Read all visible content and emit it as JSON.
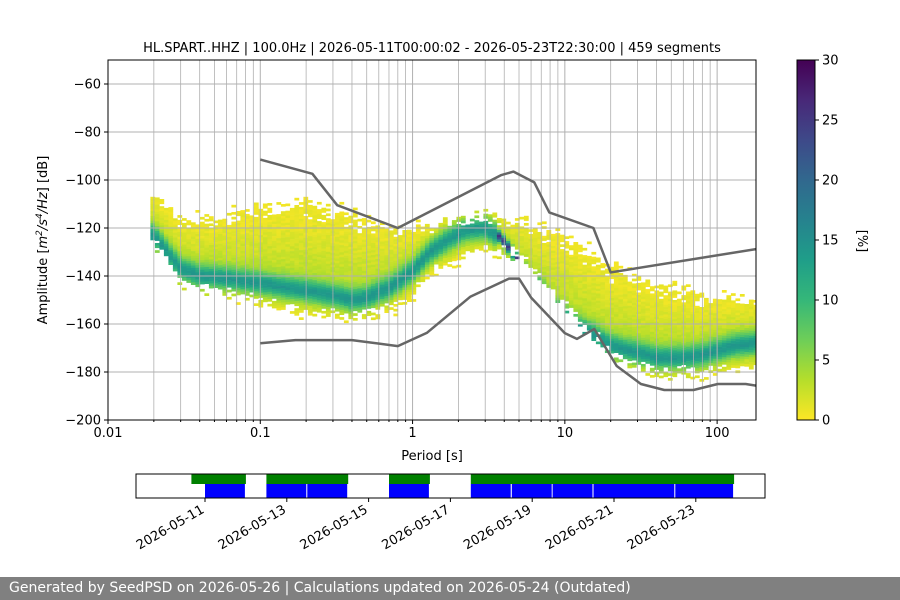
{
  "chart_data": {
    "type": "heatmap",
    "title": "HL.SPART..HHZ | 100.0Hz | 2026-05-11T00:00:02 - 2026-05-23T22:30:00 | 459 segments",
    "xlabel": "Period [s]",
    "ylabel": "Amplitude [$m^2/s^4/Hz$] [dB]",
    "xscale": "log",
    "xlim": [
      0.01,
      180
    ],
    "ylim": [
      -200,
      -50
    ],
    "x_ticks": [
      0.01,
      0.1,
      1,
      10,
      100
    ],
    "x_tick_labels": [
      "0.01",
      "0.1",
      "1",
      "10",
      "100"
    ],
    "y_ticks": [
      -60,
      -80,
      -100,
      -120,
      -140,
      -160,
      -180,
      -200
    ],
    "y_tick_labels": [
      "−60",
      "−80",
      "−100",
      "−120",
      "−140",
      "−160",
      "−180",
      "−200"
    ],
    "grid": true,
    "colorbar": {
      "label": "[%]",
      "range": [
        0,
        30
      ],
      "ticks": [
        0,
        5,
        10,
        15,
        20,
        25,
        30
      ],
      "tick_labels": [
        "0",
        "5",
        "10",
        "15",
        "20",
        "25",
        "30"
      ],
      "colormap": [
        "#fde725",
        "#b5de2b",
        "#6ece58",
        "#35b779",
        "#1f9e89",
        "#26828e",
        "#31688e",
        "#3e4989",
        "#482878",
        "#440154"
      ]
    },
    "mode_curve": {
      "period": [
        0.02,
        0.025,
        0.03,
        0.04,
        0.06,
        0.1,
        0.15,
        0.2,
        0.3,
        0.4,
        0.5,
        0.7,
        1.0,
        1.3,
        1.7,
        2.2,
        3.0,
        3.8,
        4.5,
        5.5,
        7,
        9,
        12,
        16,
        20,
        30,
        40,
        60,
        80,
        100,
        130,
        180
      ],
      "db": [
        -123,
        -131,
        -137,
        -140,
        -141,
        -143,
        -145,
        -146,
        -148,
        -150,
        -149,
        -145,
        -138,
        -130,
        -125,
        -121,
        -120,
        -124,
        -130,
        -137,
        -146,
        -155,
        -161,
        -165,
        -169,
        -172,
        -174,
        -174,
        -173,
        -171,
        -169,
        -168
      ]
    },
    "spread_upper": {
      "period": [
        0.02,
        0.03,
        0.05,
        0.1,
        0.2,
        0.4,
        0.8,
        1.5,
        3,
        5,
        8,
        12,
        20,
        40,
        80,
        180
      ],
      "db": [
        -103,
        -113,
        -112,
        -108,
        -106,
        -110,
        -117,
        -116,
        -112,
        -114,
        -118,
        -122,
        -132,
        -140,
        -145,
        -147
      ]
    },
    "spread_lower": {
      "period": [
        0.02,
        0.03,
        0.05,
        0.1,
        0.2,
        0.4,
        0.8,
        1.5,
        3,
        5,
        8,
        12,
        20,
        40,
        80,
        180
      ],
      "db": [
        -128,
        -145,
        -148,
        -154,
        -158,
        -160,
        -156,
        -140,
        -131,
        -134,
        -148,
        -160,
        -175,
        -183,
        -183,
        -180
      ]
    },
    "nlnm_line": {
      "period": [
        0.1,
        0.17,
        0.4,
        0.8,
        1.24,
        2.4,
        4.3,
        5.0,
        6.0,
        10.0,
        12.0,
        15.6,
        21.9,
        31.6,
        45.0,
        70.0,
        101.0,
        154.0,
        180.0
      ],
      "db": [
        -168.0,
        -166.7,
        -166.7,
        -169.2,
        -163.7,
        -148.6,
        -141.1,
        -141.1,
        -149.0,
        -163.8,
        -166.2,
        -162.1,
        -177.5,
        -185.0,
        -187.5,
        -187.5,
        -185.0,
        -185.0,
        -185.7
      ]
    },
    "nhnm_line": {
      "period": [
        0.1,
        0.22,
        0.32,
        0.8,
        3.8,
        4.6,
        6.3,
        7.9,
        15.4,
        20.0,
        180.0
      ],
      "db": [
        -91.5,
        -97.4,
        -110.5,
        -120.0,
        -98.0,
        -96.5,
        -101.0,
        -113.5,
        -120.0,
        -138.5,
        -128.8
      ]
    },
    "availability": {
      "date_ticks": [
        "2026-05-11",
        "2026-05-13",
        "2026-05-15",
        "2026-05-17",
        "2026-05-19",
        "2026-05-21",
        "2026-05-23"
      ],
      "green_bars": [
        [
          "2026-05-10T16:00",
          "2026-05-12T00:00"
        ],
        [
          "2026-05-12T12:00",
          "2026-05-14T12:00"
        ],
        [
          "2026-05-15T12:00",
          "2026-05-16T12:00"
        ],
        [
          "2026-05-17T12:00",
          "2026-05-23T22:30"
        ]
      ],
      "blue_bars": [
        [
          "2026-05-11T00:00",
          "2026-05-12T00:00"
        ],
        [
          "2026-05-12T12:00",
          "2026-05-13T12:00"
        ],
        [
          "2026-05-13T12:00",
          "2026-05-14T12:00"
        ],
        [
          "2026-05-15T12:00",
          "2026-05-16T12:00"
        ],
        [
          "2026-05-17T12:00",
          "2026-05-18T12:00"
        ],
        [
          "2026-05-18T12:00",
          "2026-05-19T12:00"
        ],
        [
          "2026-05-19T12:00",
          "2026-05-20T12:00"
        ],
        [
          "2026-05-20T12:00",
          "2026-05-22T12:00"
        ],
        [
          "2026-05-22T12:00",
          "2026-05-23T22:30"
        ]
      ],
      "green_color": "#008000",
      "blue_color": "#0000ff"
    },
    "line_color": "#666666"
  },
  "footer": {
    "text": "Generated by SeedPSD on 2026-05-26 | Calculations updated on 2026-05-24 (Outdated)"
  }
}
